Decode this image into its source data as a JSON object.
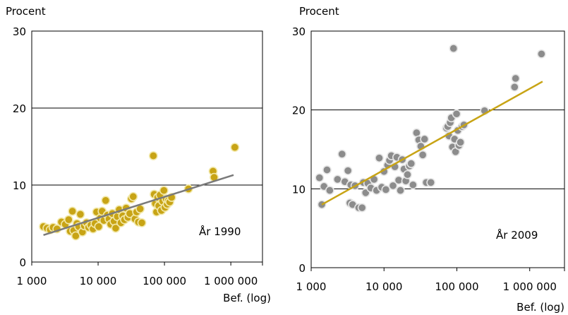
{
  "chart_data": [
    {
      "type": "scatter",
      "ylabel": "Procent",
      "xlabel": "Bef. (log)",
      "annotation": "År 1990",
      "x_scale": "log",
      "xlim": [
        1000,
        3000000
      ],
      "ylim": [
        0,
        30
      ],
      "x_ticks": [
        1000,
        10000,
        100000,
        1000000
      ],
      "x_tick_labels": [
        "1 000",
        "10 000",
        "100 000",
        "1 000 000"
      ],
      "y_ticks": [
        0,
        10,
        20,
        30
      ],
      "y_tick_labels": [
        "0",
        "10",
        "20",
        "30"
      ],
      "grid": "horizontal",
      "point_color": "#c8a415",
      "point_stroke": "#f2e8a8",
      "trend_color": "#7a7a7a",
      "trendline": [
        [
          1500,
          3.5
        ],
        [
          1100000,
          11.3
        ]
      ],
      "points": [
        [
          1500,
          4.6
        ],
        [
          1700,
          4.4
        ],
        [
          1900,
          4.2
        ],
        [
          2100,
          4.5
        ],
        [
          2400,
          4.3
        ],
        [
          2800,
          5.2
        ],
        [
          3200,
          4.9
        ],
        [
          3600,
          5.5
        ],
        [
          3800,
          4.0
        ],
        [
          4100,
          6.6
        ],
        [
          4300,
          4.1
        ],
        [
          4600,
          3.4
        ],
        [
          4800,
          5.0
        ],
        [
          5100,
          4.6
        ],
        [
          5400,
          6.2
        ],
        [
          5800,
          3.9
        ],
        [
          6200,
          4.7
        ],
        [
          6700,
          5.1
        ],
        [
          7200,
          4.5
        ],
        [
          7800,
          4.8
        ],
        [
          8400,
          4.3
        ],
        [
          9000,
          5.0
        ],
        [
          9500,
          6.5
        ],
        [
          10200,
          4.6
        ],
        [
          10800,
          5.7
        ],
        [
          11500,
          6.6
        ],
        [
          12200,
          5.4
        ],
        [
          13000,
          8.0
        ],
        [
          13800,
          6.1
        ],
        [
          14600,
          5.6
        ],
        [
          15500,
          4.9
        ],
        [
          16400,
          6.3
        ],
        [
          17400,
          5.3
        ],
        [
          18400,
          4.4
        ],
        [
          19500,
          5.9
        ],
        [
          20800,
          6.8
        ],
        [
          22100,
          5.1
        ],
        [
          23500,
          6.0
        ],
        [
          25000,
          5.5
        ],
        [
          26500,
          7.0
        ],
        [
          28200,
          5.8
        ],
        [
          30000,
          6.3
        ],
        [
          31800,
          8.2
        ],
        [
          33800,
          8.5
        ],
        [
          35900,
          5.6
        ],
        [
          38100,
          6.5
        ],
        [
          40500,
          5.2
        ],
        [
          43000,
          6.9
        ],
        [
          45600,
          5.1
        ],
        [
          68000,
          13.8
        ],
        [
          70000,
          8.8
        ],
        [
          73000,
          7.6
        ],
        [
          76000,
          6.5
        ],
        [
          79000,
          8.4
        ],
        [
          82000,
          7.3
        ],
        [
          86000,
          8.7
        ],
        [
          90000,
          6.7
        ],
        [
          94000,
          7.9
        ],
        [
          98000,
          9.3
        ],
        [
          102000,
          7.1
        ],
        [
          106000,
          8.2
        ],
        [
          110000,
          7.5
        ],
        [
          115000,
          8.0
        ],
        [
          120000,
          7.8
        ],
        [
          128000,
          8.4
        ],
        [
          230000,
          9.5
        ],
        [
          540000,
          11.8
        ],
        [
          560000,
          11.0
        ],
        [
          1150000,
          14.9
        ]
      ]
    },
    {
      "type": "scatter",
      "ylabel": "Procent",
      "xlabel": "Bef. (log)",
      "annotation": "År 2009",
      "x_scale": "log",
      "xlim": [
        1000,
        3000000
      ],
      "ylim": [
        0,
        30
      ],
      "x_ticks": [
        1000,
        10000,
        100000,
        1000000
      ],
      "x_tick_labels": [
        "1 000",
        "10 000",
        "100 000",
        "1 000 000"
      ],
      "y_ticks": [
        0,
        10,
        20,
        30
      ],
      "y_tick_labels": [
        "0",
        "10",
        "20",
        "30"
      ],
      "grid": "horizontal",
      "point_color": "#8c8c8c",
      "point_stroke": "#e6e6e6",
      "trend_color": "#c8a415",
      "trendline": [
        [
          1400,
          8.0
        ],
        [
          1500000,
          23.6
        ]
      ],
      "points": [
        [
          1300,
          11.4
        ],
        [
          1400,
          8.0
        ],
        [
          1500,
          10.3
        ],
        [
          1650,
          12.4
        ],
        [
          1800,
          9.8
        ],
        [
          2300,
          11.2
        ],
        [
          2650,
          14.4
        ],
        [
          2900,
          10.9
        ],
        [
          3200,
          12.3
        ],
        [
          3400,
          8.2
        ],
        [
          3500,
          10.5
        ],
        [
          3700,
          8.0
        ],
        [
          4000,
          10.4
        ],
        [
          4500,
          7.6
        ],
        [
          5000,
          7.6
        ],
        [
          5200,
          10.8
        ],
        [
          5600,
          9.5
        ],
        [
          6000,
          10.7
        ],
        [
          6600,
          10.1
        ],
        [
          7300,
          11.2
        ],
        [
          7900,
          9.8
        ],
        [
          8600,
          13.9
        ],
        [
          9300,
          10.2
        ],
        [
          10000,
          12.2
        ],
        [
          10600,
          9.9
        ],
        [
          11200,
          13.0
        ],
        [
          11900,
          13.6
        ],
        [
          12600,
          14.2
        ],
        [
          13300,
          10.4
        ],
        [
          14100,
          12.8
        ],
        [
          15000,
          14.0
        ],
        [
          15900,
          11.1
        ],
        [
          16800,
          9.8
        ],
        [
          17800,
          13.7
        ],
        [
          18800,
          12.5
        ],
        [
          19900,
          11.0
        ],
        [
          21000,
          11.8
        ],
        [
          22300,
          12.9
        ],
        [
          23600,
          13.2
        ],
        [
          25000,
          10.5
        ],
        [
          28000,
          17.1
        ],
        [
          30000,
          16.2
        ],
        [
          32000,
          15.4
        ],
        [
          34000,
          14.3
        ],
        [
          36000,
          16.3
        ],
        [
          38000,
          10.8
        ],
        [
          44000,
          10.8
        ],
        [
          72000,
          17.7
        ],
        [
          75000,
          17.9
        ],
        [
          78000,
          16.7
        ],
        [
          81000,
          18.4
        ],
        [
          84000,
          19.0
        ],
        [
          87000,
          15.3
        ],
        [
          90000,
          27.8
        ],
        [
          93000,
          16.3
        ],
        [
          96000,
          14.7
        ],
        [
          99000,
          19.5
        ],
        [
          103000,
          17.4
        ],
        [
          107000,
          15.5
        ],
        [
          112000,
          15.9
        ],
        [
          118000,
          17.9
        ],
        [
          125000,
          18.1
        ],
        [
          240000,
          19.9
        ],
        [
          620000,
          22.9
        ],
        [
          640000,
          24.0
        ],
        [
          1450000,
          27.1
        ]
      ]
    }
  ]
}
